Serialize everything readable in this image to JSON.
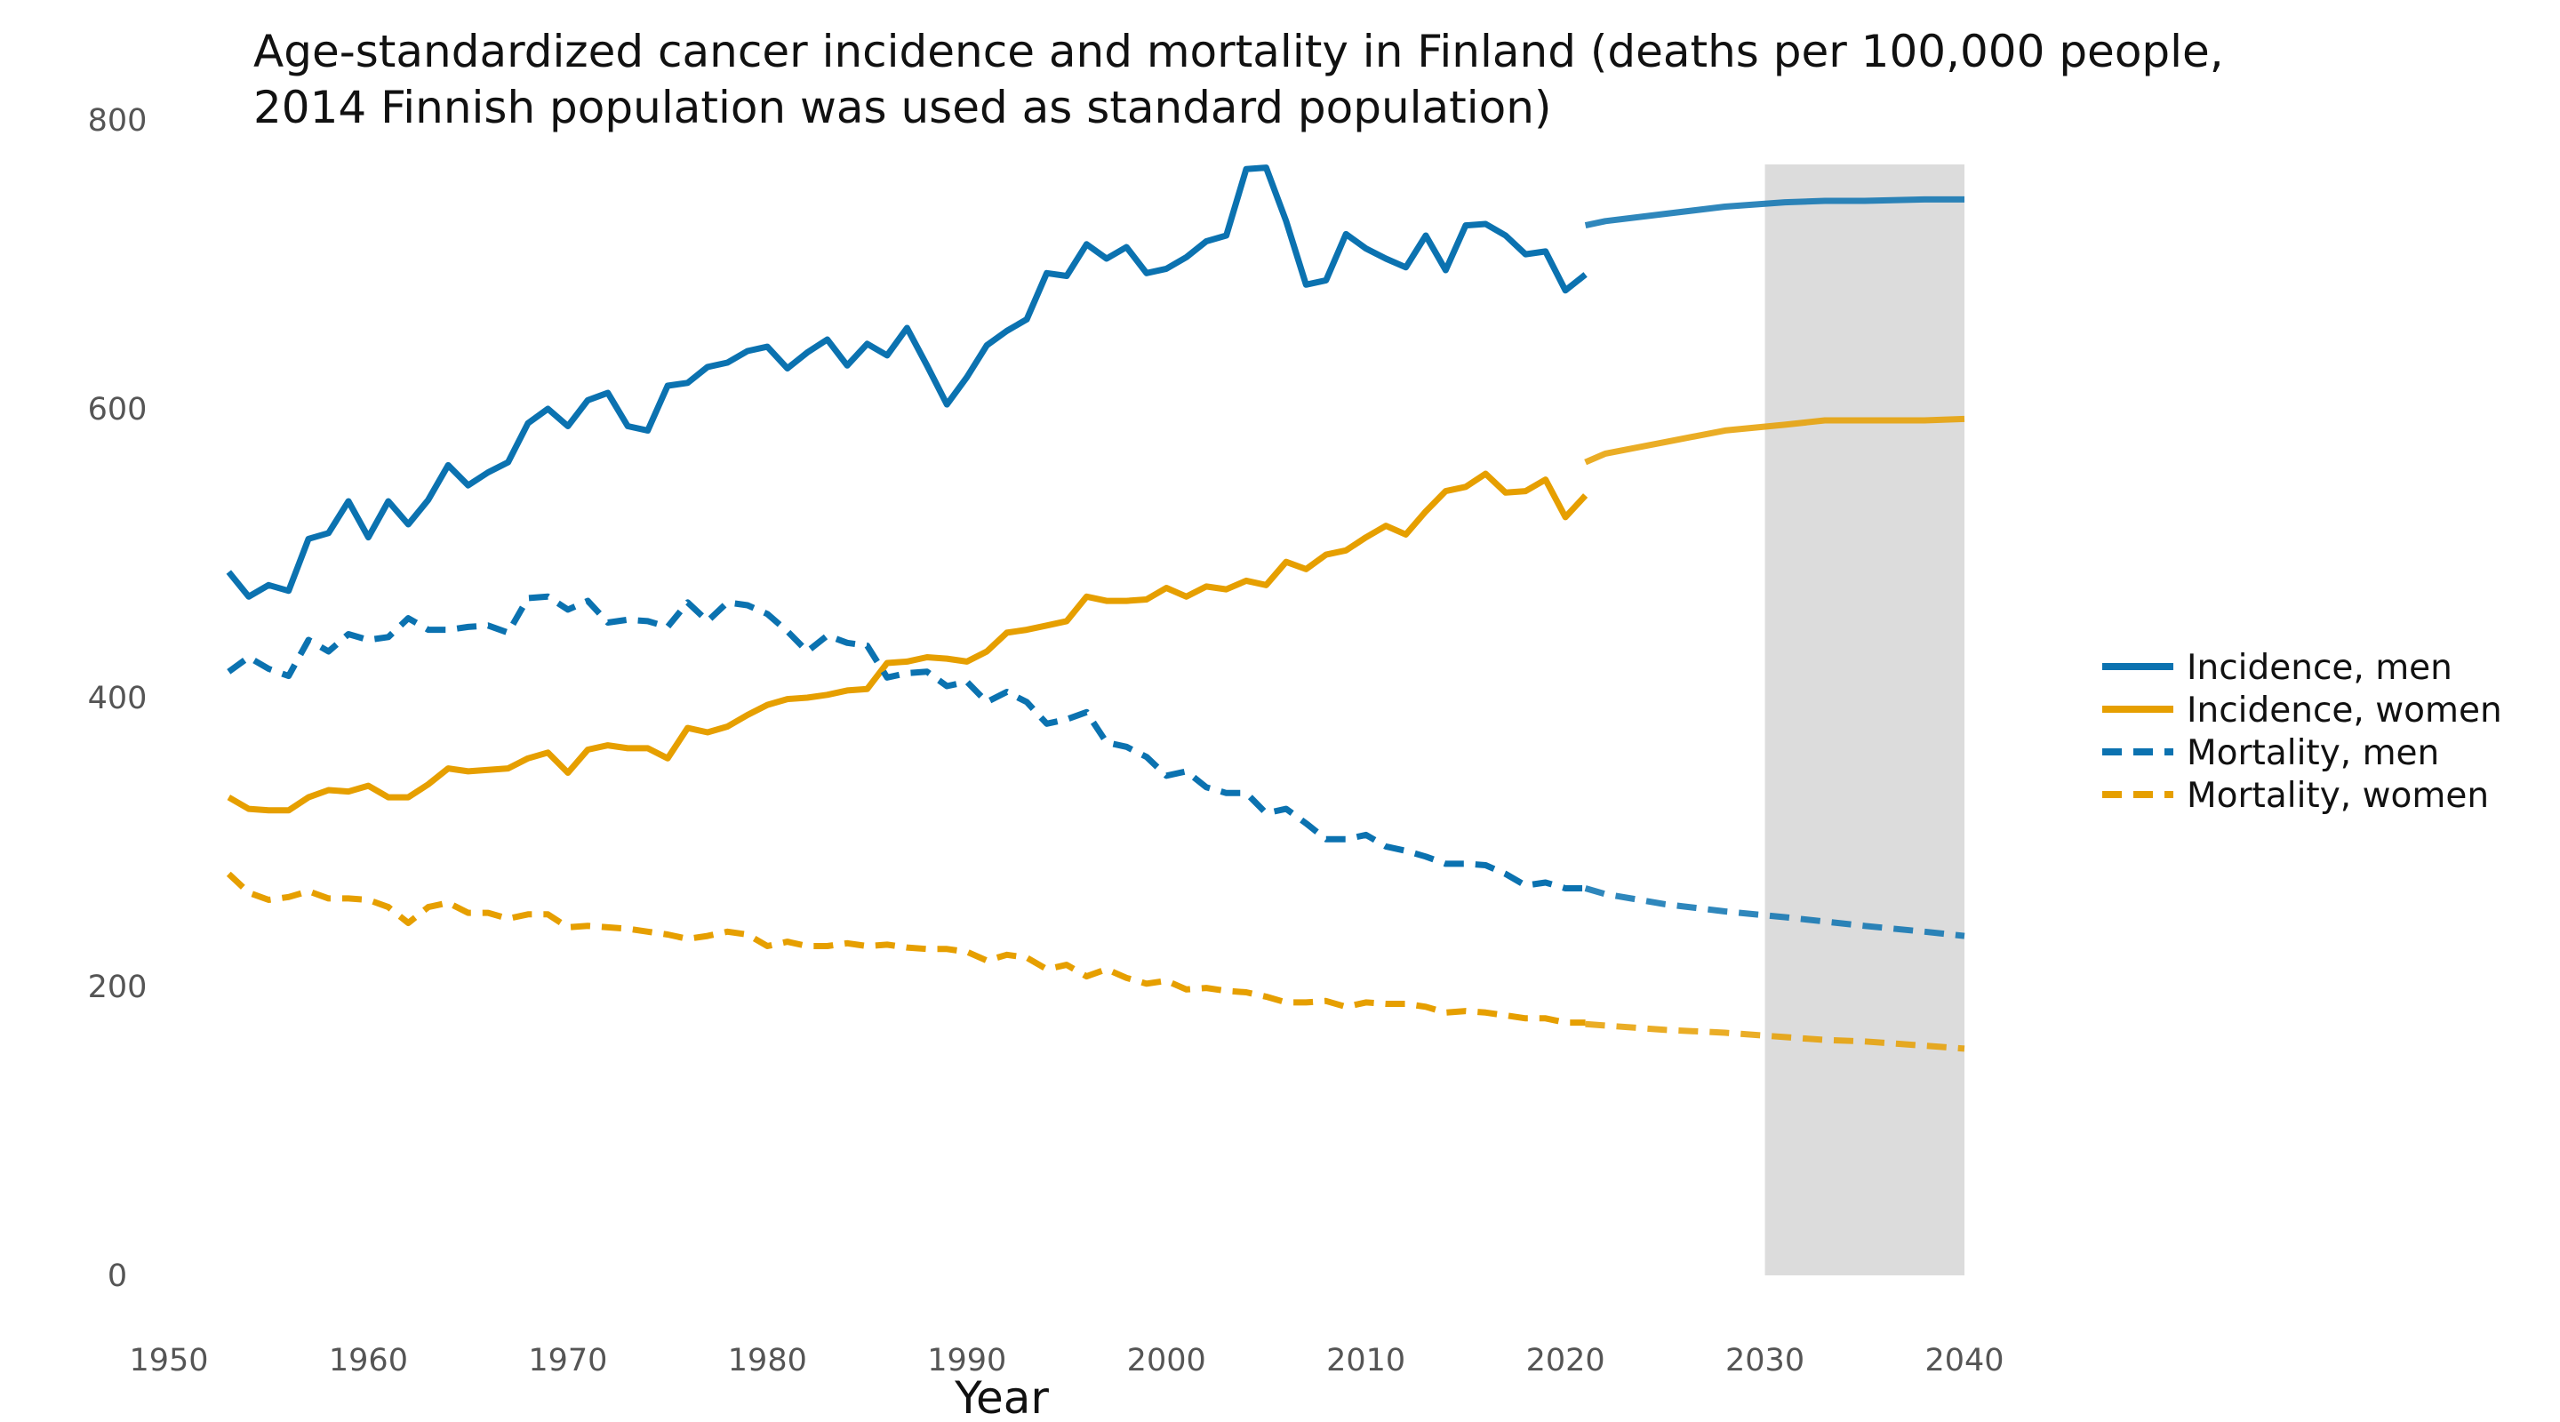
{
  "chart_data": {
    "type": "line",
    "title_line1": "Age-standardized cancer incidence and mortality in Finland (deaths per 100,000 people,",
    "title_line2": "2014 Finnish population was used as standard population)",
    "xlabel": "Year",
    "ylabel": "",
    "xlim": [
      1950,
      2040
    ],
    "ylim": [
      0,
      800
    ],
    "x_ticks": [
      "1950",
      "1960",
      "1970",
      "1980",
      "1990",
      "2000",
      "2010",
      "2020",
      "2030",
      "2040"
    ],
    "y_ticks": [
      "0",
      "200",
      "400",
      "600",
      "800"
    ],
    "shaded_region": [
      2030,
      2040
    ],
    "legend_position": "right",
    "grid": false,
    "series": [
      {
        "name": "Incidence, men",
        "color": "#0B72B0",
        "style": "solid",
        "observed": {
          "x": [
            1953,
            1954,
            1955,
            1956,
            1957,
            1958,
            1959,
            1960,
            1961,
            1962,
            1963,
            1964,
            1965,
            1966,
            1967,
            1968,
            1969,
            1970,
            1971,
            1972,
            1973,
            1974,
            1975,
            1976,
            1977,
            1978,
            1979,
            1980,
            1981,
            1982,
            1983,
            1984,
            1985,
            1986,
            1987,
            1988,
            1989,
            1990,
            1991,
            1992,
            1993,
            1994,
            1995,
            1996,
            1997,
            1998,
            1999,
            2000,
            2001,
            2002,
            2003,
            2004,
            2005,
            2006,
            2007,
            2008,
            2009,
            2010,
            2011,
            2012,
            2013,
            2014,
            2015,
            2016,
            2017,
            2018,
            2019,
            2020,
            2021
          ],
          "y": [
            487,
            470,
            478,
            474,
            510,
            514,
            536,
            511,
            536,
            520,
            537,
            561,
            547,
            556,
            563,
            590,
            600,
            588,
            606,
            611,
            588,
            585,
            616,
            618,
            629,
            632,
            640,
            643,
            628,
            639,
            648,
            630,
            645,
            637,
            656,
            630,
            603,
            622,
            644,
            654,
            662,
            694,
            692,
            714,
            704,
            712,
            694,
            697,
            705,
            716,
            720,
            766,
            767,
            730,
            686,
            689,
            721,
            711,
            704,
            698,
            720,
            696,
            727,
            728,
            720,
            707,
            709,
            682,
            693
          ]
        },
        "projection": {
          "x": [
            2021,
            2022,
            2025,
            2028,
            2031,
            2033,
            2035,
            2038,
            2040
          ],
          "y": [
            727,
            730,
            735,
            740,
            743,
            744,
            744,
            745,
            745
          ]
        }
      },
      {
        "name": "Incidence, women",
        "color": "#E69F00",
        "style": "solid",
        "observed": {
          "x": [
            1953,
            1954,
            1955,
            1956,
            1957,
            1958,
            1959,
            1960,
            1961,
            1962,
            1963,
            1964,
            1965,
            1966,
            1967,
            1968,
            1969,
            1970,
            1971,
            1972,
            1973,
            1974,
            1975,
            1976,
            1977,
            1978,
            1979,
            1980,
            1981,
            1982,
            1983,
            1984,
            1985,
            1986,
            1987,
            1988,
            1989,
            1990,
            1991,
            1992,
            1993,
            1994,
            1995,
            1996,
            1997,
            1998,
            1999,
            2000,
            2001,
            2002,
            2003,
            2004,
            2005,
            2006,
            2007,
            2008,
            2009,
            2010,
            2011,
            2012,
            2013,
            2014,
            2015,
            2016,
            2017,
            2018,
            2019,
            2020,
            2021
          ],
          "y": [
            331,
            323,
            322,
            322,
            331,
            336,
            335,
            339,
            331,
            331,
            340,
            351,
            349,
            350,
            351,
            358,
            362,
            348,
            364,
            367,
            365,
            365,
            358,
            379,
            376,
            380,
            388,
            395,
            399,
            400,
            402,
            405,
            406,
            424,
            425,
            428,
            427,
            425,
            432,
            445,
            447,
            450,
            453,
            470,
            467,
            467,
            468,
            476,
            470,
            477,
            475,
            481,
            478,
            494,
            489,
            499,
            502,
            511,
            519,
            513,
            529,
            543,
            546,
            555,
            542,
            543,
            551,
            525,
            540
          ]
        },
        "projection": {
          "x": [
            2021,
            2022,
            2025,
            2028,
            2031,
            2033,
            2035,
            2038,
            2040
          ],
          "y": [
            563,
            569,
            577,
            585,
            589,
            592,
            592,
            592,
            593
          ]
        }
      },
      {
        "name": "Mortality, men",
        "color": "#0B72B0",
        "style": "dashed",
        "observed": {
          "x": [
            1953,
            1954,
            1955,
            1956,
            1957,
            1958,
            1959,
            1960,
            1961,
            1962,
            1963,
            1964,
            1965,
            1966,
            1967,
            1968,
            1969,
            1970,
            1971,
            1972,
            1973,
            1974,
            1975,
            1976,
            1977,
            1978,
            1979,
            1980,
            1981,
            1982,
            1983,
            1984,
            1985,
            1986,
            1987,
            1988,
            1989,
            1990,
            1991,
            1992,
            1993,
            1994,
            1995,
            1996,
            1997,
            1998,
            1999,
            2000,
            2001,
            2002,
            2003,
            2004,
            2005,
            2006,
            2007,
            2008,
            2009,
            2010,
            2011,
            2012,
            2013,
            2014,
            2015,
            2016,
            2017,
            2018,
            2019,
            2020,
            2021
          ],
          "y": [
            418,
            428,
            420,
            415,
            440,
            432,
            444,
            440,
            442,
            455,
            447,
            447,
            449,
            450,
            445,
            469,
            470,
            461,
            467,
            452,
            454,
            453,
            449,
            466,
            453,
            466,
            464,
            458,
            446,
            432,
            443,
            438,
            436,
            414,
            417,
            418,
            408,
            411,
            397,
            404,
            397,
            382,
            385,
            390,
            369,
            366,
            359,
            346,
            349,
            338,
            334,
            334,
            320,
            323,
            313,
            302,
            302,
            305,
            297,
            294,
            290,
            285,
            285,
            284,
            278,
            270,
            272,
            268,
            268
          ]
        },
        "projection": {
          "x": [
            2021,
            2022,
            2025,
            2028,
            2031,
            2033,
            2035,
            2038,
            2040
          ],
          "y": [
            268,
            264,
            257,
            252,
            248,
            245,
            242,
            238,
            235
          ]
        }
      },
      {
        "name": "Mortality, women",
        "color": "#E69F00",
        "style": "dashed",
        "observed": {
          "x": [
            1953,
            1954,
            1955,
            1956,
            1957,
            1958,
            1959,
            1960,
            1961,
            1962,
            1963,
            1964,
            1965,
            1966,
            1967,
            1968,
            1969,
            1970,
            1971,
            1972,
            1973,
            1974,
            1975,
            1976,
            1977,
            1978,
            1979,
            1980,
            1981,
            1982,
            1983,
            1984,
            1985,
            1986,
            1987,
            1988,
            1989,
            1990,
            1991,
            1992,
            1993,
            1994,
            1995,
            1996,
            1997,
            1998,
            1999,
            2000,
            2001,
            2002,
            2003,
            2004,
            2005,
            2006,
            2007,
            2008,
            2009,
            2010,
            2011,
            2012,
            2013,
            2014,
            2015,
            2016,
            2017,
            2018,
            2019,
            2020,
            2021
          ],
          "y": [
            278,
            265,
            260,
            262,
            266,
            261,
            261,
            260,
            255,
            244,
            255,
            258,
            251,
            251,
            247,
            250,
            250,
            241,
            242,
            241,
            240,
            238,
            236,
            233,
            235,
            238,
            236,
            228,
            231,
            228,
            228,
            230,
            228,
            229,
            227,
            226,
            226,
            224,
            218,
            222,
            220,
            212,
            215,
            207,
            212,
            206,
            202,
            204,
            198,
            199,
            197,
            196,
            193,
            189,
            189,
            190,
            186,
            189,
            188,
            188,
            186,
            182,
            183,
            182,
            180,
            178,
            178,
            175,
            175
          ]
        },
        "projection": {
          "x": [
            2021,
            2022,
            2025,
            2028,
            2031,
            2033,
            2035,
            2038,
            2040
          ],
          "y": [
            174,
            173,
            170,
            168,
            165,
            163,
            162,
            159,
            157
          ]
        }
      }
    ]
  }
}
